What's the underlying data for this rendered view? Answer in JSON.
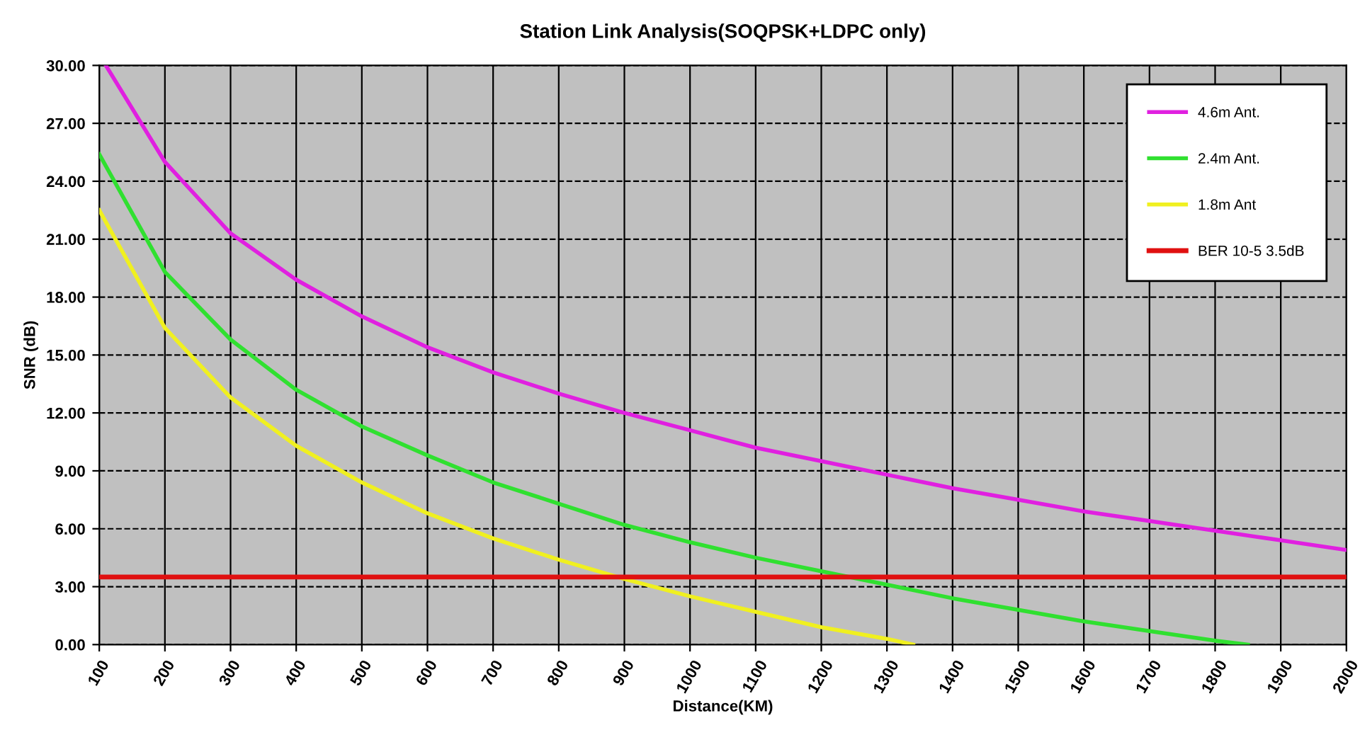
{
  "chart_data": {
    "type": "line",
    "title": "Station Link Analysis(SOQPSK+LDPC only)",
    "xlabel": "Distance(KM)",
    "ylabel": "SNR (dB)",
    "xlim": [
      100,
      2000
    ],
    "xticks": [
      100,
      200,
      300,
      400,
      500,
      600,
      700,
      800,
      900,
      1000,
      1100,
      1200,
      1300,
      1400,
      1500,
      1600,
      1700,
      1800,
      1900,
      2000
    ],
    "ylim": [
      0,
      30
    ],
    "yticks": [
      {
        "value": 0,
        "label": "0.00"
      },
      {
        "value": 3,
        "label": "3.00"
      },
      {
        "value": 6,
        "label": "6.00"
      },
      {
        "value": 9,
        "label": "9.00"
      },
      {
        "value": 12,
        "label": "12.00"
      },
      {
        "value": 15,
        "label": "15.00"
      },
      {
        "value": 18,
        "label": "18.00"
      },
      {
        "value": 21,
        "label": "21.00"
      },
      {
        "value": 24,
        "label": "24.00"
      },
      {
        "value": 27,
        "label": "27.00"
      },
      {
        "value": 30,
        "label": "30.00"
      }
    ],
    "grid": true,
    "legend": "top right",
    "marker": "none",
    "line_style": "solid",
    "series": [
      {
        "name": "4.6m Ant.",
        "color": "#e020e0",
        "x": [
          110,
          200,
          300,
          400,
          500,
          600,
          700,
          800,
          900,
          1000,
          1100,
          1200,
          1300,
          1400,
          1500,
          1600,
          1700,
          1800,
          1900,
          2000
        ],
        "values": [
          30,
          25,
          21.3,
          18.9,
          17,
          15.4,
          14.1,
          13,
          12,
          11.1,
          10.2,
          9.5,
          8.8,
          8.1,
          7.5,
          6.9,
          6.4,
          5.9,
          5.4,
          4.9
        ]
      },
      {
        "name": "2.4m Ant.",
        "color": "#30e030",
        "x": [
          100,
          200,
          300,
          400,
          500,
          600,
          700,
          800,
          900,
          1000,
          1100,
          1200,
          1300,
          1400,
          1500,
          1600,
          1700,
          1800,
          1850
        ],
        "values": [
          25.4,
          19.3,
          15.8,
          13.2,
          11.3,
          9.8,
          8.4,
          7.3,
          6.2,
          5.3,
          4.5,
          3.8,
          3.1,
          2.4,
          1.8,
          1.2,
          0.7,
          0.2,
          0
        ]
      },
      {
        "name": "1.8m Ant",
        "color": "#f0f020",
        "x": [
          100,
          200,
          300,
          400,
          500,
          600,
          700,
          800,
          900,
          1000,
          1100,
          1200,
          1300,
          1340
        ],
        "values": [
          22.5,
          16.4,
          12.8,
          10.3,
          8.4,
          6.8,
          5.5,
          4.4,
          3.4,
          2.5,
          1.7,
          0.9,
          0.3,
          0
        ]
      }
    ],
    "ref_lines": [
      {
        "axis": "y",
        "value": 3.5,
        "label": "BER 10-5 3.5dB",
        "color": "#e01010",
        "line_style": "solid"
      }
    ]
  }
}
